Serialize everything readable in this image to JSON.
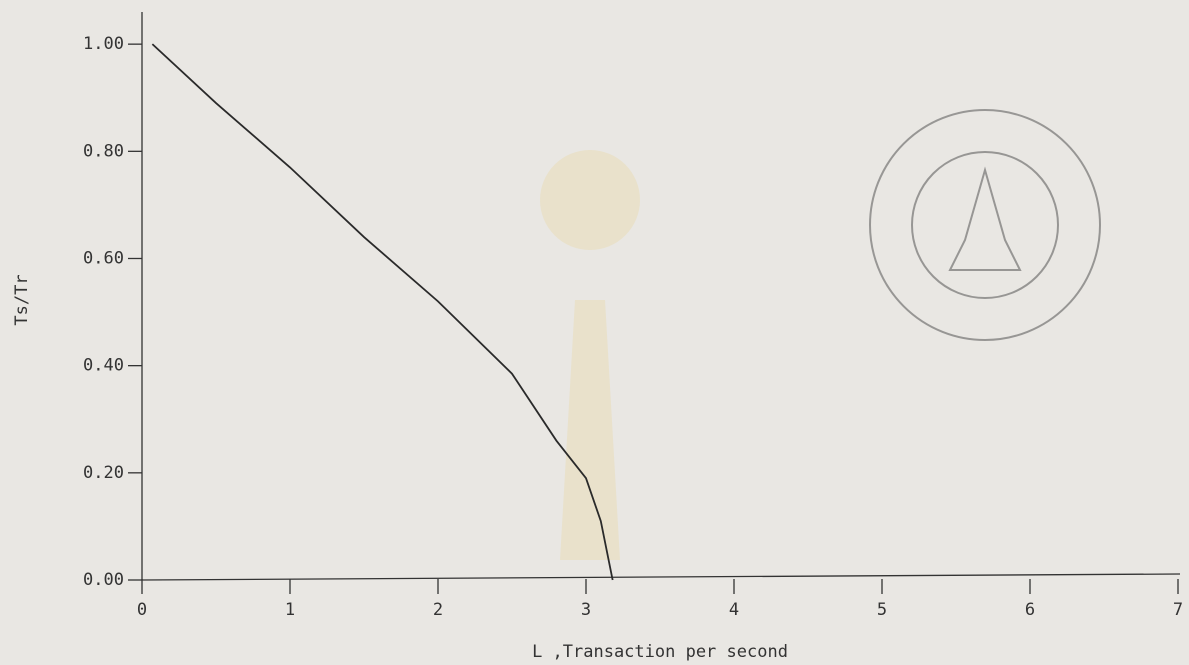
{
  "chart_data": {
    "type": "line",
    "x_label": "L ,Transaction per second",
    "y_label": "Ts/Tr",
    "x": [
      0.07,
      0.5,
      1,
      1.5,
      2,
      2.5,
      2.8,
      3,
      3.1,
      3.18
    ],
    "series": [
      {
        "color": "#2a2a2a",
        "values": [
          1.0,
          0.89,
          0.77,
          0.64,
          0.52,
          0.385,
          0.26,
          0.19,
          0.11,
          0
        ]
      }
    ],
    "xlim": [
      0,
      7
    ],
    "ylim": [
      0,
      1.06
    ],
    "xticks": [
      0,
      1,
      2,
      3,
      4,
      5,
      6,
      7
    ],
    "yticks": [
      {
        "value": 0,
        "label": "0.00"
      },
      {
        "value": 0.2,
        "label": "0.20"
      },
      {
        "value": 0.4,
        "label": "0.40"
      },
      {
        "value": 0.6,
        "label": "0.60"
      },
      {
        "value": 0.8,
        "label": "0.80"
      },
      {
        "value": 1.0,
        "label": "1.00"
      }
    ]
  }
}
